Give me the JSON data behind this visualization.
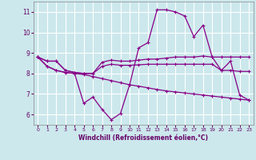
{
  "xlabel": "Windchill (Refroidissement éolien,°C)",
  "background_color": "#cce8ec",
  "grid_color": "#ffffff",
  "line_color": "#880088",
  "xlim": [
    -0.5,
    23.5
  ],
  "ylim": [
    5.5,
    11.5
  ],
  "yticks": [
    6,
    7,
    8,
    9,
    10,
    11
  ],
  "xticks": [
    0,
    1,
    2,
    3,
    4,
    5,
    6,
    7,
    8,
    9,
    10,
    11,
    12,
    13,
    14,
    15,
    16,
    17,
    18,
    19,
    20,
    21,
    22,
    23
  ],
  "line1_x": [
    0,
    1,
    2,
    3,
    4,
    5,
    6,
    7,
    8,
    9,
    10,
    11,
    12,
    13,
    14,
    15,
    16,
    17,
    18,
    19,
    20,
    21,
    22,
    23
  ],
  "line1_y": [
    8.8,
    8.35,
    8.15,
    8.05,
    8.0,
    7.95,
    7.85,
    7.75,
    7.65,
    7.55,
    7.45,
    7.38,
    7.3,
    7.22,
    7.15,
    7.1,
    7.05,
    7.0,
    6.95,
    6.9,
    6.85,
    6.8,
    6.75,
    6.7
  ],
  "line2_x": [
    0,
    1,
    2,
    3,
    4,
    5,
    6,
    7,
    8,
    9,
    10,
    11,
    12,
    13,
    14,
    15,
    16,
    17,
    18,
    19,
    20,
    21,
    22,
    23
  ],
  "line2_y": [
    8.8,
    8.35,
    8.15,
    8.05,
    8.0,
    6.55,
    6.85,
    6.25,
    5.75,
    6.05,
    7.45,
    9.25,
    9.5,
    11.1,
    11.1,
    11.0,
    10.8,
    9.8,
    10.35,
    8.8,
    8.15,
    8.6,
    6.95,
    6.7
  ],
  "line3_x": [
    0,
    1,
    2,
    3,
    4,
    5,
    6,
    7,
    8,
    9,
    10,
    11,
    12,
    13,
    14,
    15,
    16,
    17,
    18,
    19,
    20,
    21,
    22,
    23
  ],
  "line3_y": [
    8.8,
    8.6,
    8.6,
    8.15,
    8.05,
    8.0,
    8.0,
    8.55,
    8.65,
    8.6,
    8.6,
    8.65,
    8.7,
    8.7,
    8.75,
    8.8,
    8.8,
    8.8,
    8.85,
    8.8,
    8.8,
    8.8,
    8.8,
    8.8
  ],
  "line4_x": [
    0,
    1,
    2,
    3,
    4,
    5,
    6,
    7,
    8,
    9,
    10,
    11,
    12,
    13,
    14,
    15,
    16,
    17,
    18,
    19,
    20,
    21,
    22,
    23
  ],
  "line4_y": [
    8.8,
    8.6,
    8.6,
    8.15,
    8.05,
    8.0,
    8.0,
    8.35,
    8.45,
    8.4,
    8.4,
    8.42,
    8.45,
    8.45,
    8.45,
    8.45,
    8.45,
    8.45,
    8.45,
    8.45,
    8.15,
    8.15,
    8.1,
    8.1
  ]
}
